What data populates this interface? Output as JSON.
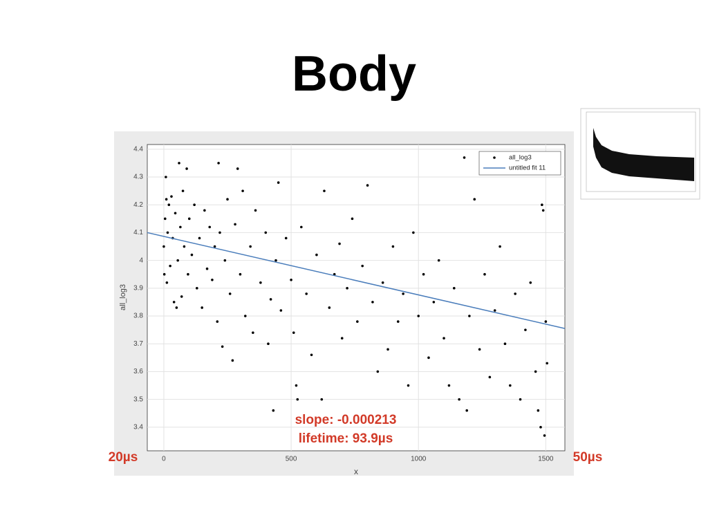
{
  "slide_title": "Body",
  "chart_data": {
    "type": "scatter",
    "xlabel": "x",
    "ylabel": "all_log3",
    "xlim": [
      -65,
      1575
    ],
    "ylim": [
      3.315,
      4.417
    ],
    "xticks": [
      0,
      500,
      1000,
      1500
    ],
    "yticks": [
      3.4,
      3.5,
      3.6,
      3.7,
      3.8,
      3.9,
      4,
      4.1,
      4.2,
      4.3,
      4.4
    ],
    "grid": true,
    "legend": "northeast",
    "series": [
      {
        "name": "all_log3",
        "color": "#000000",
        "x": [
          0,
          2,
          5,
          8,
          10,
          12,
          15,
          20,
          25,
          30,
          35,
          40,
          45,
          50,
          55,
          60,
          65,
          70,
          75,
          80,
          90,
          95,
          100,
          110,
          120,
          130,
          140,
          150,
          160,
          170,
          180,
          190,
          200,
          210,
          215,
          220,
          230,
          240,
          250,
          260,
          270,
          280,
          290,
          300,
          310,
          320,
          340,
          350,
          360,
          380,
          400,
          410,
          420,
          430,
          440,
          450,
          460,
          480,
          500,
          510,
          520,
          525,
          540,
          560,
          580,
          600,
          620,
          630,
          650,
          670,
          690,
          700,
          720,
          740,
          760,
          780,
          800,
          820,
          840,
          860,
          880,
          900,
          920,
          940,
          960,
          980,
          1000,
          1020,
          1040,
          1060,
          1080,
          1100,
          1120,
          1140,
          1160,
          1180,
          1190,
          1200,
          1220,
          1240,
          1260,
          1280,
          1300,
          1320,
          1340,
          1360,
          1380,
          1400,
          1420,
          1440,
          1460,
          1470,
          1480,
          1485,
          1490,
          1495,
          1500,
          1505
        ],
        "values": [
          4.05,
          3.95,
          4.15,
          4.3,
          4.22,
          3.92,
          4.1,
          4.2,
          3.98,
          4.23,
          4.08,
          3.85,
          4.17,
          3.83,
          4.0,
          4.35,
          4.12,
          3.87,
          4.25,
          4.05,
          4.33,
          3.95,
          4.15,
          4.02,
          4.2,
          3.9,
          4.08,
          3.83,
          4.18,
          3.97,
          4.12,
          3.93,
          4.05,
          3.78,
          4.35,
          4.1,
          3.69,
          4.0,
          4.22,
          3.88,
          3.64,
          4.13,
          4.33,
          3.95,
          4.25,
          3.8,
          4.05,
          3.74,
          4.18,
          3.92,
          4.1,
          3.7,
          3.86,
          3.46,
          4.0,
          4.28,
          3.82,
          4.08,
          3.93,
          3.74,
          3.55,
          3.5,
          4.12,
          3.88,
          3.66,
          4.02,
          3.5,
          4.25,
          3.83,
          3.95,
          4.06,
          3.72,
          3.9,
          4.15,
          3.78,
          3.98,
          4.27,
          3.85,
          3.6,
          3.92,
          3.68,
          4.05,
          3.78,
          3.88,
          3.55,
          4.1,
          3.8,
          3.95,
          3.65,
          3.85,
          4.0,
          3.72,
          3.55,
          3.9,
          3.5,
          4.37,
          3.46,
          3.8,
          4.22,
          3.68,
          3.95,
          3.58,
          3.82,
          4.05,
          3.7,
          3.55,
          3.88,
          3.5,
          3.75,
          3.92,
          3.6,
          3.46,
          3.4,
          4.2,
          4.18,
          3.37,
          3.78,
          3.63
        ]
      },
      {
        "name": "untitled fit 11",
        "color": "#4a7dbb",
        "line": true,
        "x": [
          -65,
          1575
        ],
        "values": [
          4.1,
          3.755
        ]
      }
    ],
    "annotations": [
      "slope: -0.000213",
      "lifetime: 93.9µs",
      "20µs",
      "50µs"
    ]
  }
}
